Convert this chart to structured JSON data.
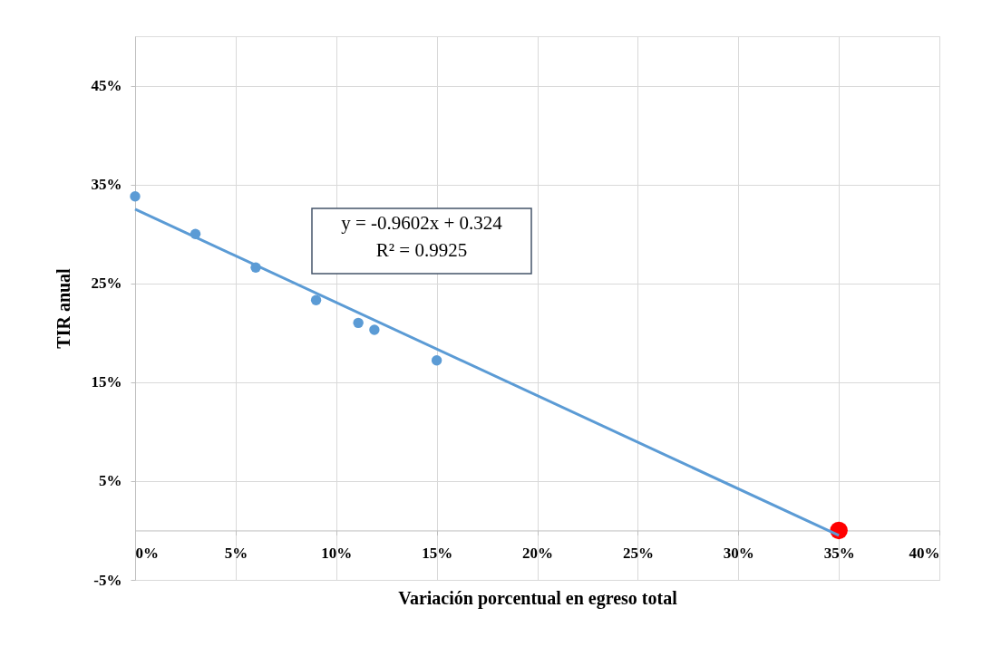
{
  "chart_data": {
    "type": "scatter",
    "xlabel": "Variación porcentual en egreso total",
    "ylabel": "TIR anual",
    "annotations": [
      "y = -0.9602x + 0.324",
      "R² = 0.9925"
    ],
    "series": [
      {
        "color": "#5b9bd5",
        "x": [
          0,
          3.0,
          6.0,
          9.0,
          11.1,
          11.9,
          15.0
        ],
        "values": [
          33.8,
          30.0,
          26.6,
          23.3,
          21.0,
          20.3,
          17.2
        ]
      },
      {
        "color": "#ff0000",
        "x": [
          35.0
        ],
        "values": [
          0.0
        ]
      },
      {
        "type": "line",
        "color": "#5b9bd5",
        "x": [
          0,
          35
        ],
        "values": [
          32.5,
          -0.5
        ],
        "marker": "none"
      }
    ],
    "xlim": [
      0,
      40
    ],
    "ylim": [
      -5,
      50
    ],
    "xticks": [
      {
        "value": 0,
        "label": "0%"
      },
      {
        "value": 5,
        "label": "5%"
      },
      {
        "value": 10,
        "label": "10%"
      },
      {
        "value": 15,
        "label": "15%"
      },
      {
        "value": 20,
        "label": "20%"
      },
      {
        "value": 25,
        "label": "25%"
      },
      {
        "value": 30,
        "label": "30%"
      },
      {
        "value": 35,
        "label": "35%"
      },
      {
        "value": 40,
        "label": "40%"
      }
    ],
    "yticks": [
      {
        "value": -5,
        "label": "-5%"
      },
      {
        "value": 5,
        "label": "5%"
      },
      {
        "value": 15,
        "label": "15%"
      },
      {
        "value": 25,
        "label": "25%"
      },
      {
        "value": 35,
        "label": "35%"
      },
      {
        "value": 45,
        "label": "45%"
      }
    ],
    "grid": true,
    "marker": "circle"
  }
}
